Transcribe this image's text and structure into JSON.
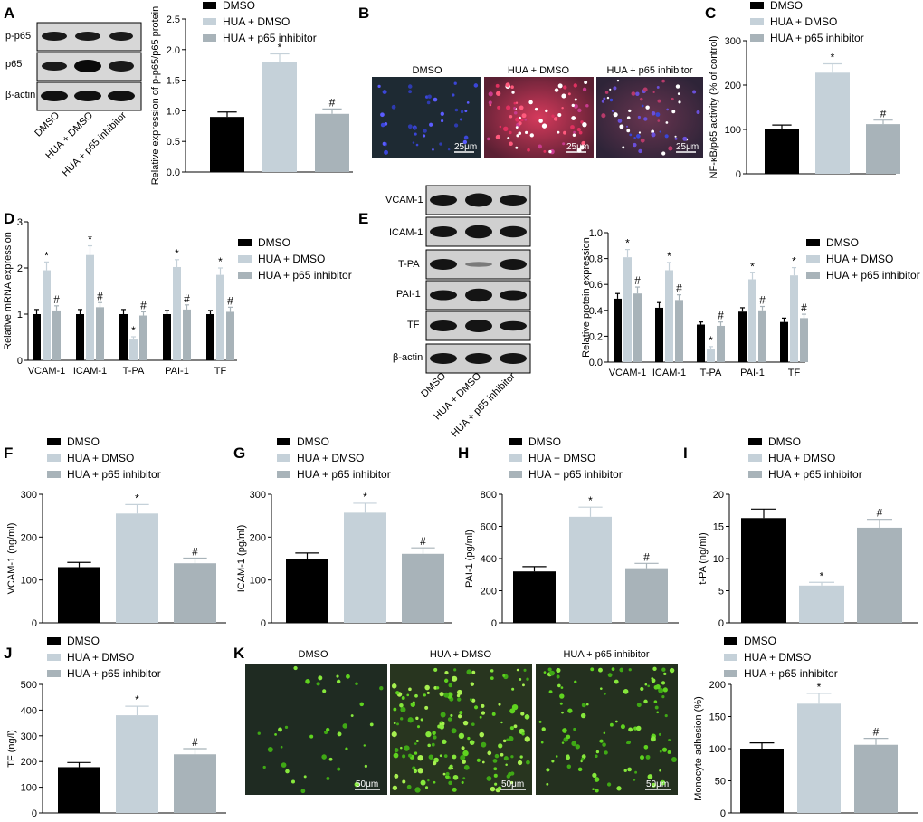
{
  "colors": {
    "dmso": "#000000",
    "hua_dmso": "#c5d1d9",
    "hua_p65": "#a8b3b9"
  },
  "legend": [
    "DMSO",
    "HUA + DMSO",
    "HUA + p65 inhibitor"
  ],
  "panel_labels": [
    "A",
    "B",
    "C",
    "D",
    "E",
    "F",
    "G",
    "H",
    "I",
    "J",
    "K"
  ],
  "blot_a": {
    "rows": [
      "p-p65",
      "p65",
      "β-actin"
    ],
    "lanes": [
      "DMSO",
      "HUA + DMSO",
      "HUA + p65 inhibitor"
    ]
  },
  "blot_e": {
    "rows": [
      "VCAM-1",
      "ICAM-1",
      "T-PA",
      "PAI-1",
      "TF",
      "β-actin"
    ],
    "lanes": [
      "DMSO",
      "HUA + DMSO",
      "HUA + p65 inhibitor"
    ]
  },
  "image_b": {
    "titles": [
      "DMSO",
      "HUA + DMSO",
      "HUA + p65 inhibitor"
    ],
    "scale": "25μm"
  },
  "image_k": {
    "titles": [
      "DMSO",
      "HUA + DMSO",
      "HUA + p65 inhibitor"
    ],
    "scale": "50μm"
  },
  "chart_data": [
    {
      "id": "A",
      "type": "bar",
      "categories": [
        "DMSO",
        "HUA + DMSO",
        "HUA + p65 inhibitor"
      ],
      "values": [
        0.9,
        1.8,
        0.95
      ],
      "errors": [
        0.08,
        0.13,
        0.08
      ],
      "marks": [
        "",
        "*",
        "#"
      ],
      "ylabel": "Relative expression of p-p65/p65 protein",
      "ylim": [
        0,
        2.5
      ],
      "yticks": [
        0,
        0.5,
        1.0,
        1.5,
        2.0,
        2.5
      ],
      "yticklabels": [
        "0.0",
        "0.5",
        "1.0",
        "1.5",
        "2.0",
        "2.5"
      ]
    },
    {
      "id": "C",
      "type": "bar",
      "categories": [
        "DMSO",
        "HUA + DMSO",
        "HUA + p65 inhibitor"
      ],
      "values": [
        100,
        228,
        112
      ],
      "errors": [
        10,
        20,
        9
      ],
      "marks": [
        "",
        "*",
        "#"
      ],
      "ylabel": "NF-κB/p65 activity (% of control)",
      "ylim": [
        0,
        300
      ],
      "yticks": [
        0,
        100,
        200,
        300
      ],
      "yticklabels": [
        "0",
        "100",
        "200",
        "300"
      ]
    },
    {
      "id": "D",
      "type": "bar",
      "categories": [
        "VCAM-1",
        "ICAM-1",
        "T-PA",
        "PAI-1",
        "TF"
      ],
      "series": [
        {
          "name": "DMSO",
          "values": [
            1.0,
            1.0,
            1.0,
            1.0,
            1.0
          ],
          "errors": [
            0.1,
            0.1,
            0.1,
            0.08,
            0.08
          ],
          "marks": [
            "",
            "",
            "",
            "",
            ""
          ]
        },
        {
          "name": "HUA + DMSO",
          "values": [
            1.95,
            2.28,
            0.45,
            2.02,
            1.85
          ],
          "errors": [
            0.18,
            0.2,
            0.06,
            0.16,
            0.15
          ],
          "marks": [
            "*",
            "*",
            "*",
            "*",
            "*"
          ]
        },
        {
          "name": "HUA + p65 inhibitor",
          "values": [
            1.08,
            1.15,
            0.97,
            1.1,
            1.05
          ],
          "errors": [
            0.1,
            0.1,
            0.08,
            0.1,
            0.1
          ],
          "marks": [
            "#",
            "#",
            "#",
            "#",
            "#"
          ]
        }
      ],
      "ylabel": "Relative mRNA expression",
      "ylim": [
        0,
        3
      ],
      "yticks": [
        0,
        1,
        2,
        3
      ],
      "yticklabels": [
        "0",
        "1",
        "2",
        "3"
      ]
    },
    {
      "id": "E",
      "type": "bar",
      "categories": [
        "VCAM-1",
        "ICAM-1",
        "T-PA",
        "PAI-1",
        "TF"
      ],
      "series": [
        {
          "name": "DMSO",
          "values": [
            0.49,
            0.42,
            0.29,
            0.39,
            0.31
          ],
          "errors": [
            0.04,
            0.04,
            0.02,
            0.03,
            0.03
          ],
          "marks": [
            "",
            "",
            "",
            "",
            ""
          ]
        },
        {
          "name": "HUA + DMSO",
          "values": [
            0.81,
            0.71,
            0.1,
            0.64,
            0.67
          ],
          "errors": [
            0.06,
            0.06,
            0.02,
            0.05,
            0.06
          ],
          "marks": [
            "*",
            "*",
            "*",
            "*",
            "*"
          ]
        },
        {
          "name": "HUA + p65 inhibitor",
          "values": [
            0.53,
            0.48,
            0.28,
            0.4,
            0.34
          ],
          "errors": [
            0.05,
            0.04,
            0.03,
            0.03,
            0.03
          ],
          "marks": [
            "#",
            "#",
            "#",
            "#",
            "#"
          ]
        }
      ],
      "ylabel": "Relative protein expression",
      "ylim": [
        0,
        1.0
      ],
      "yticks": [
        0,
        0.2,
        0.4,
        0.6,
        0.8,
        1.0
      ],
      "yticklabels": [
        "0.0",
        "0.2",
        "0.4",
        "0.6",
        "0.8",
        "1.0"
      ]
    },
    {
      "id": "F",
      "type": "bar",
      "categories": [
        "DMSO",
        "HUA + DMSO",
        "HUA + p65 inhibitor"
      ],
      "values": [
        130,
        255,
        139
      ],
      "errors": [
        11,
        21,
        12
      ],
      "marks": [
        "",
        "*",
        "#"
      ],
      "ylabel": "VCAM-1 (ng/ml)",
      "ylim": [
        0,
        300
      ],
      "yticks": [
        0,
        100,
        200,
        300
      ],
      "yticklabels": [
        "0",
        "100",
        "200",
        "300"
      ]
    },
    {
      "id": "G",
      "type": "bar",
      "categories": [
        "DMSO",
        "HUA + DMSO",
        "HUA + p65 inhibitor"
      ],
      "values": [
        149,
        257,
        161
      ],
      "errors": [
        14,
        22,
        14
      ],
      "marks": [
        "",
        "*",
        "#"
      ],
      "ylabel": "ICAM-1 (pg/ml)",
      "ylim": [
        0,
        300
      ],
      "yticks": [
        0,
        100,
        200,
        300
      ],
      "yticklabels": [
        "0",
        "100",
        "200",
        "300"
      ]
    },
    {
      "id": "H",
      "type": "bar",
      "categories": [
        "DMSO",
        "HUA + DMSO",
        "HUA + p65 inhibitor"
      ],
      "values": [
        320,
        660,
        340
      ],
      "errors": [
        30,
        60,
        30
      ],
      "marks": [
        "",
        "*",
        "#"
      ],
      "ylabel": "PAI-1 (pg/ml)",
      "ylim": [
        0,
        800
      ],
      "yticks": [
        0,
        200,
        400,
        600,
        800
      ],
      "yticklabels": [
        "0",
        "200",
        "400",
        "600",
        "800"
      ]
    },
    {
      "id": "I",
      "type": "bar",
      "categories": [
        "DMSO",
        "HUA + DMSO",
        "HUA + p65 inhibitor"
      ],
      "values": [
        16.3,
        5.8,
        14.8
      ],
      "errors": [
        1.4,
        0.5,
        1.3
      ],
      "marks": [
        "",
        "*",
        "#"
      ],
      "ylabel": "t-PA (ng/ml)",
      "ylim": [
        0,
        20
      ],
      "yticks": [
        0,
        5,
        10,
        15,
        20
      ],
      "yticklabels": [
        "0",
        "5",
        "10",
        "15",
        "20"
      ]
    },
    {
      "id": "J",
      "type": "bar",
      "categories": [
        "DMSO",
        "HUA + DMSO",
        "HUA + p65 inhibitor"
      ],
      "values": [
        178,
        380,
        228
      ],
      "errors": [
        18,
        35,
        22
      ],
      "marks": [
        "",
        "*",
        "#"
      ],
      "ylabel": "TF (ng/l)",
      "ylim": [
        0,
        500
      ],
      "yticks": [
        0,
        100,
        200,
        300,
        400,
        500
      ],
      "yticklabels": [
        "0",
        "100",
        "200",
        "300",
        "400",
        "500"
      ]
    },
    {
      "id": "K",
      "type": "bar",
      "categories": [
        "DMSO",
        "HUA + DMSO",
        "HUA + p65 inhibitor"
      ],
      "values": [
        100,
        170,
        106
      ],
      "errors": [
        9,
        16,
        10
      ],
      "marks": [
        "",
        "*",
        "#"
      ],
      "ylabel": "Monocyte adhesion (%)",
      "ylim": [
        0,
        200
      ],
      "yticks": [
        0,
        50,
        100,
        150,
        200
      ],
      "yticklabels": [
        "0",
        "50",
        "100",
        "150",
        "200"
      ]
    }
  ]
}
